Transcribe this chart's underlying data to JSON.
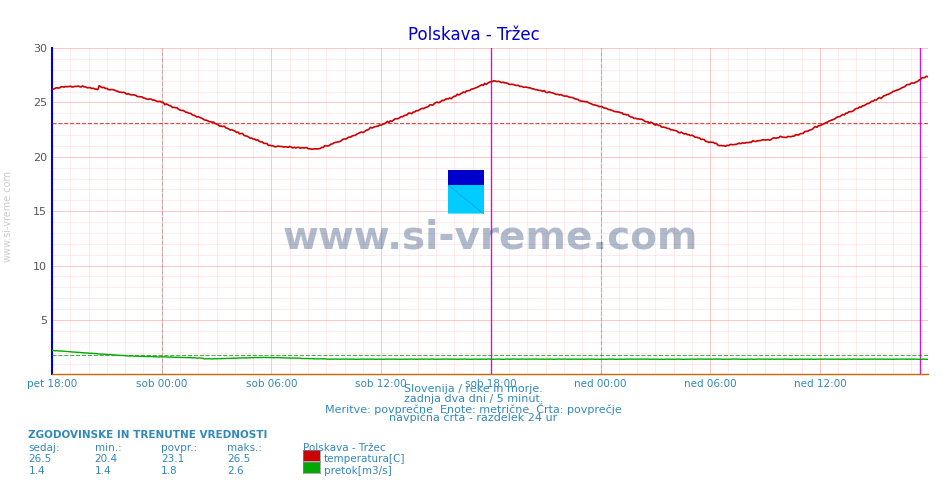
{
  "title": "Polskava - Tržec",
  "title_color": "#0000cc",
  "bg_color": "#ffffff",
  "plot_bg_color": "#ffffff",
  "xlabel": "",
  "ylabel": "",
  "xlim": [
    0,
    575
  ],
  "ylim": [
    0,
    30
  ],
  "yticks": [
    0,
    5,
    10,
    15,
    20,
    25,
    30
  ],
  "xtick_labels": [
    "pet 18:00",
    "sob 00:00",
    "sob 06:00",
    "sob 12:00",
    "sob 18:00",
    "ned 00:00",
    "ned 06:00",
    "ned 12:00"
  ],
  "xtick_positions": [
    0,
    72,
    144,
    216,
    288,
    360,
    432,
    504
  ],
  "temp_avg": 23.1,
  "temp_color": "#cc0000",
  "flow_color": "#00aa00",
  "flow_avg": 1.8,
  "avg_line_color_temp": "#cc0000",
  "avg_line_color_flow": "#008800",
  "vline_color_magenta": "#cc00cc",
  "vline_color_gray": "#888888",
  "watermark_text": "www.si-vreme.com",
  "watermark_color": "#1a3a6e",
  "watermark_alpha": 0.35,
  "info_text1": "Slovenija / reke in morje.",
  "info_text2": "zadnja dva dni / 5 minut.",
  "info_text3": "Meritve: povprečne  Enote: metrične  Črta: povprečje",
  "info_text4": "navpična črta - razdelek 24 ur",
  "stat_header": "ZGODOVINSKE IN TRENUTNE VREDNOSTI",
  "stat_labels": [
    "sedaj:",
    "min.:",
    "povpr.:",
    "maks.:"
  ],
  "stat_temp": [
    26.5,
    20.4,
    23.1,
    26.5
  ],
  "stat_flow": [
    1.4,
    1.4,
    1.8,
    2.6
  ],
  "legend_station": "Polskava - Tržec",
  "legend_temp_label": "temperatura[C]",
  "legend_flow_label": "pretok[m3/s]",
  "left_label": "www.si-vreme.com",
  "left_label_color": "#aaaaaa",
  "spine_left_color": "#0000cc",
  "spine_bottom_color": "#cc6600"
}
